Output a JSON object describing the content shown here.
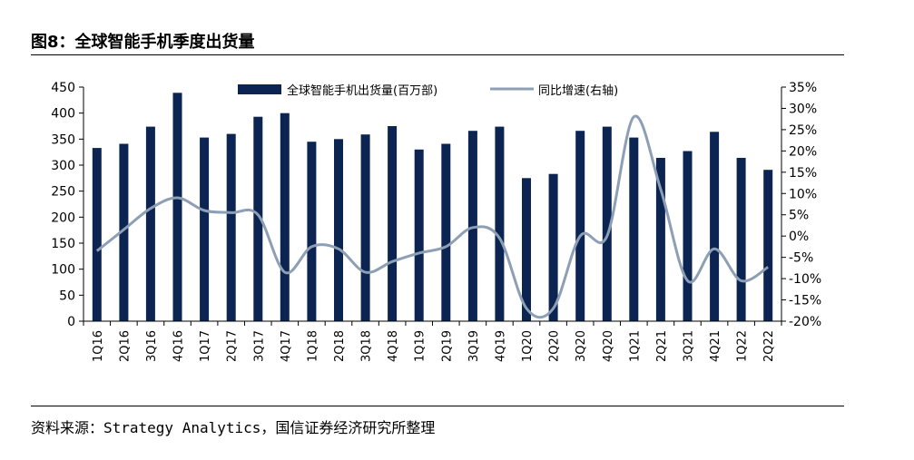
{
  "figure": {
    "title": "图8：全球智能手机季度出货量",
    "source": "资料来源：Strategy Analytics，国信证券经济研究所整理"
  },
  "colors": {
    "bar": "#0c2452",
    "line": "#8d9fb4"
  },
  "chart_data": {
    "type": "bar",
    "categories": [
      "1Q16",
      "2Q16",
      "3Q16",
      "4Q16",
      "1Q17",
      "2Q17",
      "3Q17",
      "4Q17",
      "1Q18",
      "2Q18",
      "3Q18",
      "4Q18",
      "1Q19",
      "2Q19",
      "3Q19",
      "4Q19",
      "1Q20",
      "2Q20",
      "3Q20",
      "4Q20",
      "1Q21",
      "2Q21",
      "3Q21",
      "4Q21",
      "1Q22",
      "2Q22"
    ],
    "series": [
      {
        "name": "全球智能手机出货量(百万部)",
        "type": "bar",
        "axis": "left",
        "values": [
          333,
          341,
          374,
          439,
          353,
          360,
          393,
          400,
          345,
          350,
          359,
          375,
          330,
          341,
          366,
          374,
          275,
          283,
          366,
          374,
          353,
          314,
          327,
          364,
          314,
          291
        ]
      },
      {
        "name": "同比增速(右轴)",
        "type": "line",
        "axis": "right",
        "values": [
          -3.5,
          1.5,
          6.5,
          9,
          6,
          5.5,
          5,
          -8.5,
          -2.5,
          -3,
          -8.5,
          -6,
          -4,
          -2.5,
          2,
          -0.5,
          -17,
          -17,
          0,
          0,
          28,
          11,
          -10.5,
          -3,
          -10.5,
          -7.3
        ]
      }
    ],
    "y_left": {
      "range": [
        0,
        450
      ],
      "ticks": [
        "0",
        "50",
        "100",
        "150",
        "200",
        "250",
        "300",
        "350",
        "400",
        "450"
      ]
    },
    "y_right": {
      "range": [
        -20,
        35
      ],
      "ticks": [
        "-20%",
        "-15%",
        "-10%",
        "-5%",
        "0%",
        "5%",
        "10%",
        "15%",
        "20%",
        "25%",
        "30%",
        "35%"
      ]
    },
    "legend_position": "top",
    "grid": false
  }
}
